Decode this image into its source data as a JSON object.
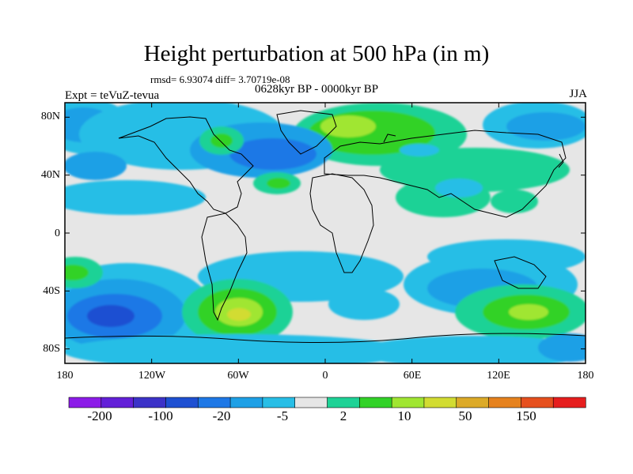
{
  "title": "Height perturbation at 500 hPa (in m)",
  "stats": "rmsd= 6.93074 diff= 3.70719e-08",
  "period": "0628kyr BP - 0000kyr BP",
  "experiment": "Expt = teVuZ-tevua",
  "season": "JJA",
  "map": {
    "type": "filled-contour world map",
    "lat_labels": [
      "80N",
      "40N",
      "0",
      "40S",
      "80S"
    ],
    "lon_labels": [
      "180",
      "120W",
      "60W",
      "0",
      "60E",
      "120E",
      "180"
    ],
    "lat_range": [
      -90,
      90
    ],
    "lon_range": [
      -180,
      180
    ]
  },
  "colorbar": {
    "labels": [
      "-200",
      "-100",
      "-20",
      "-5",
      "2",
      "10",
      "50",
      "150"
    ],
    "colors": [
      "#8c1ce8",
      "#6320d8",
      "#3c32c8",
      "#1e50d2",
      "#1e78e6",
      "#1ea0e6",
      "#28bee6",
      "#e6e6e6",
      "#1ed296",
      "#32d228",
      "#a0e632",
      "#d2dc32",
      "#dcaa28",
      "#e6821e",
      "#e6501e",
      "#e61e1e"
    ]
  }
}
